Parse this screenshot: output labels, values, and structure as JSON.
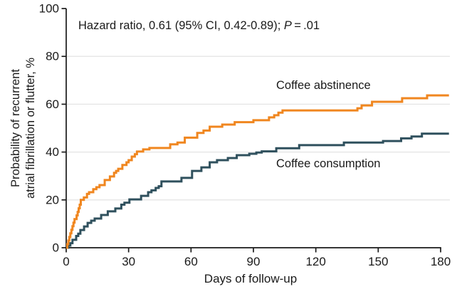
{
  "figure": {
    "annotation": {
      "prefix": "Hazard ratio, 0.61 (95% CI, 0.42-0.89); ",
      "italic_var": "P",
      "suffix": " = .01"
    },
    "labels": {
      "abstinence": "Coffee abstinence",
      "consumption": "Coffee consumption"
    },
    "x_axis_title": "Days of follow-up",
    "y_axis_title_line1": "Probability of recurrent",
    "y_axis_title_line2": "atrial fibrillation or flutter, %"
  },
  "chart_data": {
    "type": "line",
    "subtype": "kaplan-meier-step",
    "title": "",
    "xlabel": "Days of follow-up",
    "ylabel": "Probability of recurrent atrial fibrillation or flutter, %",
    "annotation": "Hazard ratio, 0.61 (95% CI, 0.42-0.89); P = .01",
    "xlim": [
      0,
      184
    ],
    "ylim": [
      0,
      100
    ],
    "xticks": [
      0,
      30,
      60,
      90,
      120,
      150,
      180
    ],
    "yticks": [
      0,
      20,
      40,
      60,
      80,
      100
    ],
    "grid_y": [
      20,
      40,
      60,
      80
    ],
    "legend_position": "inline-curve-labels",
    "series": [
      {
        "name": "Coffee abstinence",
        "color": "#F0861F",
        "points": [
          [
            0,
            0
          ],
          [
            0.5,
            1.5
          ],
          [
            1,
            3
          ],
          [
            1.5,
            4.5
          ],
          [
            2,
            6
          ],
          [
            2.5,
            7.5
          ],
          [
            3,
            9
          ],
          [
            3.5,
            10.5
          ],
          [
            4,
            12
          ],
          [
            5,
            13.5
          ],
          [
            5.5,
            15
          ],
          [
            6,
            16.5
          ],
          [
            6.5,
            18
          ],
          [
            7,
            20
          ],
          [
            8.5,
            21
          ],
          [
            10,
            22.5
          ],
          [
            11,
            23.2
          ],
          [
            13,
            24.5
          ],
          [
            14.5,
            25.3
          ],
          [
            16,
            26.2
          ],
          [
            18.5,
            28.3
          ],
          [
            21,
            29.8
          ],
          [
            23,
            31.3
          ],
          [
            24,
            32.1
          ],
          [
            25,
            33
          ],
          [
            27,
            34.6
          ],
          [
            29,
            35.7
          ],
          [
            30,
            36.6
          ],
          [
            31.5,
            38.1
          ],
          [
            33,
            39.1
          ],
          [
            34,
            40.2
          ],
          [
            37,
            41.1
          ],
          [
            40,
            41.7
          ],
          [
            50,
            43.2
          ],
          [
            53.5,
            44
          ],
          [
            57,
            46
          ],
          [
            63,
            48
          ],
          [
            66,
            49
          ],
          [
            69,
            50.6
          ],
          [
            75,
            51.5
          ],
          [
            81,
            52.5
          ],
          [
            90,
            53.3
          ],
          [
            97.5,
            54.5
          ],
          [
            100,
            55.4
          ],
          [
            102,
            56.5
          ],
          [
            104,
            57.4
          ],
          [
            140,
            58.3
          ],
          [
            142,
            59.5
          ],
          [
            147,
            61
          ],
          [
            161.5,
            62.5
          ],
          [
            173.5,
            63.7
          ],
          [
            184,
            63.7
          ]
        ]
      },
      {
        "name": "Coffee consumption",
        "color": "#2F505D",
        "points": [
          [
            0,
            0
          ],
          [
            1,
            0.9
          ],
          [
            2,
            1.9
          ],
          [
            3,
            3.3
          ],
          [
            4.8,
            4.9
          ],
          [
            5.8,
            5.9
          ],
          [
            6.8,
            7.4
          ],
          [
            8.6,
            8.9
          ],
          [
            10.3,
            10.4
          ],
          [
            12,
            11.3
          ],
          [
            13.7,
            12.2
          ],
          [
            16.8,
            13.7
          ],
          [
            20,
            15.2
          ],
          [
            23.6,
            16.4
          ],
          [
            26.5,
            18
          ],
          [
            28,
            18.8
          ],
          [
            30.4,
            20.2
          ],
          [
            36,
            21.7
          ],
          [
            39.4,
            23.2
          ],
          [
            41,
            24
          ],
          [
            43,
            25
          ],
          [
            44.5,
            25.7
          ],
          [
            45.8,
            27.7
          ],
          [
            55.4,
            29.2
          ],
          [
            60.5,
            32.1
          ],
          [
            65,
            33.6
          ],
          [
            69,
            35.7
          ],
          [
            72.5,
            36.6
          ],
          [
            77.7,
            37.5
          ],
          [
            82,
            38.7
          ],
          [
            88,
            39.3
          ],
          [
            91.4,
            39.8
          ],
          [
            94,
            40.3
          ],
          [
            101,
            41.6
          ],
          [
            112,
            42.9
          ],
          [
            133.5,
            44
          ],
          [
            152.3,
            44.6
          ],
          [
            161,
            45.7
          ],
          [
            166,
            46.5
          ],
          [
            171,
            47.7
          ],
          [
            184,
            47.7
          ]
        ]
      }
    ]
  },
  "style": {
    "accent_orange": "#F0861F",
    "accent_teal": "#2F505D",
    "grid_color": "#E4E4E4",
    "axis_color": "#1A1A1A",
    "text_color": "#1A1A1A"
  }
}
